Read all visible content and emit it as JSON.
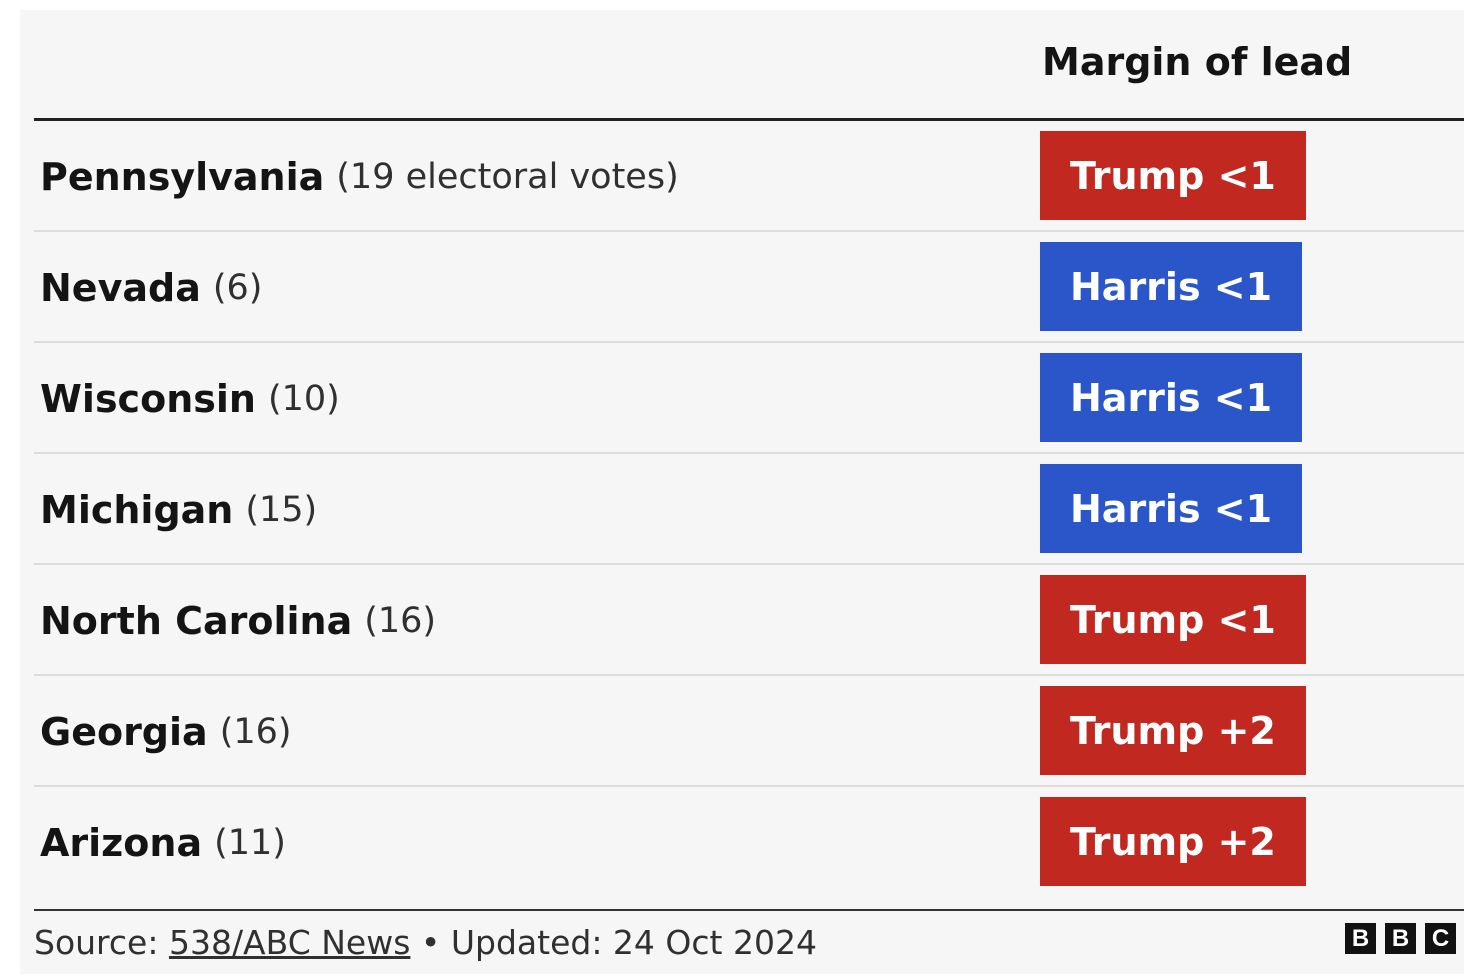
{
  "header": {
    "column_label": "Margin of lead"
  },
  "rows": [
    {
      "state": "Pennsylvania",
      "votes": "(19 electoral votes)",
      "lead": "Trump <1",
      "leader": "Trump"
    },
    {
      "state": "Nevada",
      "votes": "(6)",
      "lead": "Harris <1",
      "leader": "Harris"
    },
    {
      "state": "Wisconsin",
      "votes": "(10)",
      "lead": "Harris <1",
      "leader": "Harris"
    },
    {
      "state": "Michigan",
      "votes": "(15)",
      "lead": "Harris <1",
      "leader": "Harris"
    },
    {
      "state": "North Carolina",
      "votes": "(16)",
      "lead": "Trump <1",
      "leader": "Trump"
    },
    {
      "state": "Georgia",
      "votes": "(16)",
      "lead": "Trump +2",
      "leader": "Trump"
    },
    {
      "state": "Arizona",
      "votes": "(11)",
      "lead": "Trump +2",
      "leader": "Trump"
    }
  ],
  "colors": {
    "Trump": "#c1281f",
    "Harris": "#2b56c9",
    "background": "#f6f6f6"
  },
  "footer": {
    "source_prefix": "Source: ",
    "source_link": "538/ABC News",
    "separator": " • ",
    "updated": "Updated: 24 Oct 2024",
    "logo_letters": [
      "B",
      "B",
      "C"
    ]
  },
  "chart_data": {
    "type": "table",
    "columns": [
      "",
      "Margin of lead"
    ],
    "rows": [
      [
        "Pennsylvania (19 electoral votes)",
        "Trump <1"
      ],
      [
        "Nevada (6)",
        "Harris <1"
      ],
      [
        "Wisconsin (10)",
        "Harris <1"
      ],
      [
        "Michigan (15)",
        "Harris <1"
      ],
      [
        "North Carolina (16)",
        "Trump <1"
      ],
      [
        "Georgia (16)",
        "Trump +2"
      ],
      [
        "Arizona (11)",
        "Trump +2"
      ]
    ]
  }
}
